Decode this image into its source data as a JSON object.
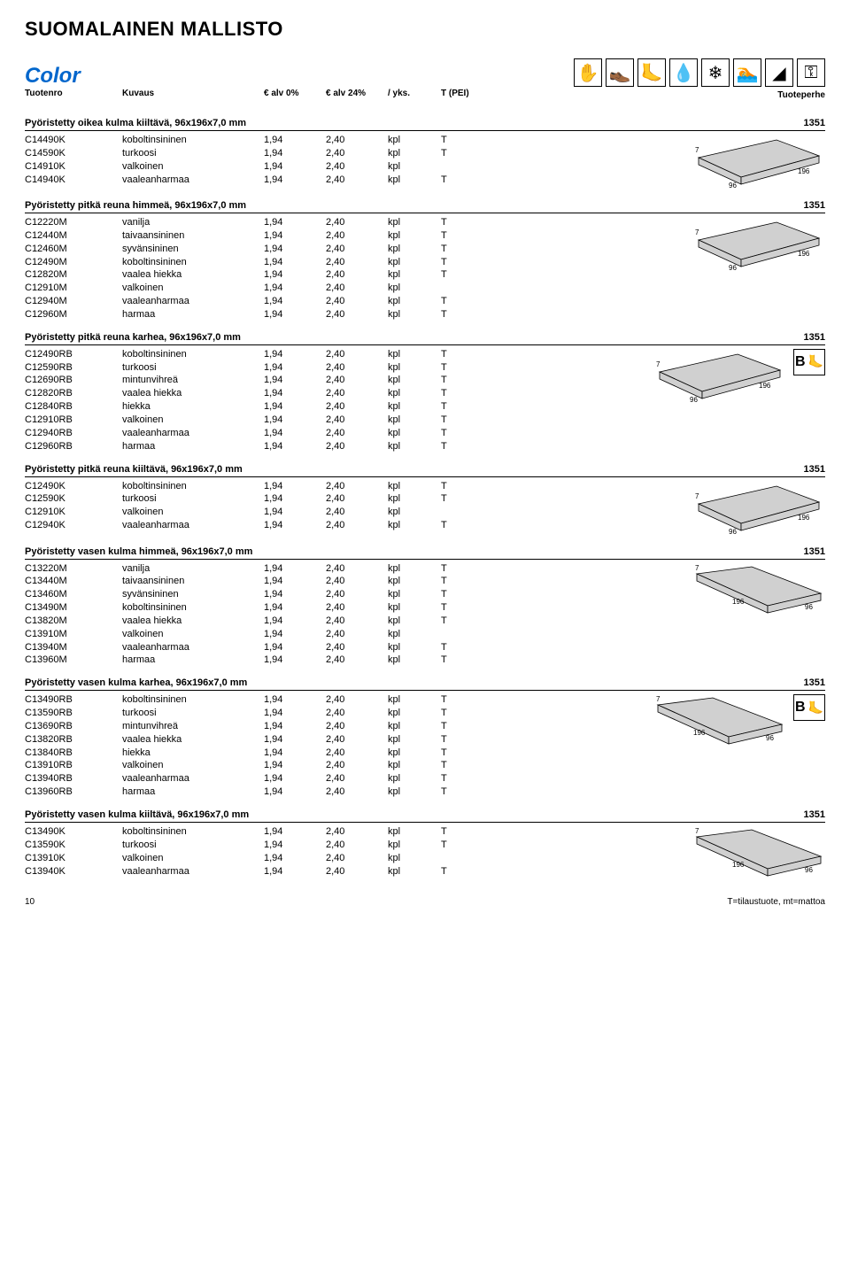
{
  "page_title": "SUOMALAINEN MALLISTO",
  "brand": "Color",
  "columns": {
    "tuotenro": "Tuotenro",
    "kuvaus": "Kuvaus",
    "alv0": "€ alv 0%",
    "alv24": "€ alv 24%",
    "yks": "/ yks.",
    "tpei": "T (PEI)",
    "tuoteperhe": "Tuoteperhe"
  },
  "header_icons": [
    {
      "name": "glove-icon",
      "glyph": "✋"
    },
    {
      "name": "shoe-icon",
      "glyph": "👞"
    },
    {
      "name": "foot-icon",
      "glyph": "🦶"
    },
    {
      "name": "drop-icon",
      "glyph": "💧"
    },
    {
      "name": "snowflake-icon",
      "glyph": "❄"
    },
    {
      "name": "swimmer-icon",
      "glyph": "🏊"
    },
    {
      "name": "slope-icon",
      "glyph": "◢"
    },
    {
      "name": "key-icon",
      "glyph": "⚿"
    }
  ],
  "dims": {
    "h": "7",
    "w": "96",
    "l": "196"
  },
  "sections": [
    {
      "title": "Pyöristetty oikea kulma kiiltävä, 96x196x7,0 mm",
      "family": "1351",
      "shape": "long_depth",
      "badge": false,
      "rows": [
        {
          "code": "C14490K",
          "desc": "koboltinsininen",
          "p0": "1,94",
          "p24": "2,40",
          "unit": "kpl",
          "t": "T"
        },
        {
          "code": "C14590K",
          "desc": "turkoosi",
          "p0": "1,94",
          "p24": "2,40",
          "unit": "kpl",
          "t": "T"
        },
        {
          "code": "C14910K",
          "desc": "valkoinen",
          "p0": "1,94",
          "p24": "2,40",
          "unit": "kpl",
          "t": ""
        },
        {
          "code": "C14940K",
          "desc": "vaaleanharmaa",
          "p0": "1,94",
          "p24": "2,40",
          "unit": "kpl",
          "t": "T"
        }
      ]
    },
    {
      "title": "Pyöristetty pitkä reuna himmeä, 96x196x7,0 mm",
      "family": "1351",
      "shape": "long_depth",
      "badge": false,
      "rows": [
        {
          "code": "C12220M",
          "desc": "vanilja",
          "p0": "1,94",
          "p24": "2,40",
          "unit": "kpl",
          "t": "T"
        },
        {
          "code": "C12440M",
          "desc": "taivaansininen",
          "p0": "1,94",
          "p24": "2,40",
          "unit": "kpl",
          "t": "T"
        },
        {
          "code": "C12460M",
          "desc": "syvänsininen",
          "p0": "1,94",
          "p24": "2,40",
          "unit": "kpl",
          "t": "T"
        },
        {
          "code": "C12490M",
          "desc": "koboltinsininen",
          "p0": "1,94",
          "p24": "2,40",
          "unit": "kpl",
          "t": "T"
        },
        {
          "code": "C12820M",
          "desc": "vaalea hiekka",
          "p0": "1,94",
          "p24": "2,40",
          "unit": "kpl",
          "t": "T"
        },
        {
          "code": "C12910M",
          "desc": "valkoinen",
          "p0": "1,94",
          "p24": "2,40",
          "unit": "kpl",
          "t": ""
        },
        {
          "code": "C12940M",
          "desc": "vaaleanharmaa",
          "p0": "1,94",
          "p24": "2,40",
          "unit": "kpl",
          "t": "T"
        },
        {
          "code": "C12960M",
          "desc": "harmaa",
          "p0": "1,94",
          "p24": "2,40",
          "unit": "kpl",
          "t": "T"
        }
      ]
    },
    {
      "title": "Pyöristetty pitkä reuna karhea, 96x196x7,0 mm",
      "family": "1351",
      "shape": "long_depth",
      "badge": true,
      "rows": [
        {
          "code": "C12490RB",
          "desc": "koboltinsininen",
          "p0": "1,94",
          "p24": "2,40",
          "unit": "kpl",
          "t": "T"
        },
        {
          "code": "C12590RB",
          "desc": "turkoosi",
          "p0": "1,94",
          "p24": "2,40",
          "unit": "kpl",
          "t": "T"
        },
        {
          "code": "C12690RB",
          "desc": "mintunvihreä",
          "p0": "1,94",
          "p24": "2,40",
          "unit": "kpl",
          "t": "T"
        },
        {
          "code": "C12820RB",
          "desc": "vaalea hiekka",
          "p0": "1,94",
          "p24": "2,40",
          "unit": "kpl",
          "t": "T"
        },
        {
          "code": "C12840RB",
          "desc": "hiekka",
          "p0": "1,94",
          "p24": "2,40",
          "unit": "kpl",
          "t": "T"
        },
        {
          "code": "C12910RB",
          "desc": "valkoinen",
          "p0": "1,94",
          "p24": "2,40",
          "unit": "kpl",
          "t": "T"
        },
        {
          "code": "C12940RB",
          "desc": "vaaleanharmaa",
          "p0": "1,94",
          "p24": "2,40",
          "unit": "kpl",
          "t": "T"
        },
        {
          "code": "C12960RB",
          "desc": "harmaa",
          "p0": "1,94",
          "p24": "2,40",
          "unit": "kpl",
          "t": "T"
        }
      ]
    },
    {
      "title": "Pyöristetty pitkä reuna kiiltävä, 96x196x7,0 mm",
      "family": "1351",
      "shape": "long_depth",
      "badge": false,
      "rows": [
        {
          "code": "C12490K",
          "desc": "koboltinsininen",
          "p0": "1,94",
          "p24": "2,40",
          "unit": "kpl",
          "t": "T"
        },
        {
          "code": "C12590K",
          "desc": "turkoosi",
          "p0": "1,94",
          "p24": "2,40",
          "unit": "kpl",
          "t": "T"
        },
        {
          "code": "C12910K",
          "desc": "valkoinen",
          "p0": "1,94",
          "p24": "2,40",
          "unit": "kpl",
          "t": ""
        },
        {
          "code": "C12940K",
          "desc": "vaaleanharmaa",
          "p0": "1,94",
          "p24": "2,40",
          "unit": "kpl",
          "t": "T"
        }
      ]
    },
    {
      "title": "Pyöristetty vasen kulma himmeä, 96x196x7,0 mm",
      "family": "1351",
      "shape": "long_width",
      "badge": false,
      "rows": [
        {
          "code": "C13220M",
          "desc": "vanilja",
          "p0": "1,94",
          "p24": "2,40",
          "unit": "kpl",
          "t": "T"
        },
        {
          "code": "C13440M",
          "desc": "taivaansininen",
          "p0": "1,94",
          "p24": "2,40",
          "unit": "kpl",
          "t": "T"
        },
        {
          "code": "C13460M",
          "desc": "syvänsininen",
          "p0": "1,94",
          "p24": "2,40",
          "unit": "kpl",
          "t": "T"
        },
        {
          "code": "C13490M",
          "desc": "koboltinsininen",
          "p0": "1,94",
          "p24": "2,40",
          "unit": "kpl",
          "t": "T"
        },
        {
          "code": "C13820M",
          "desc": "vaalea hiekka",
          "p0": "1,94",
          "p24": "2,40",
          "unit": "kpl",
          "t": "T"
        },
        {
          "code": "C13910M",
          "desc": "valkoinen",
          "p0": "1,94",
          "p24": "2,40",
          "unit": "kpl",
          "t": ""
        },
        {
          "code": "C13940M",
          "desc": "vaaleanharmaa",
          "p0": "1,94",
          "p24": "2,40",
          "unit": "kpl",
          "t": "T"
        },
        {
          "code": "C13960M",
          "desc": "harmaa",
          "p0": "1,94",
          "p24": "2,40",
          "unit": "kpl",
          "t": "T"
        }
      ]
    },
    {
      "title": "Pyöristetty vasen kulma karhea, 96x196x7,0 mm",
      "family": "1351",
      "shape": "long_width",
      "badge": true,
      "rows": [
        {
          "code": "C13490RB",
          "desc": "koboltinsininen",
          "p0": "1,94",
          "p24": "2,40",
          "unit": "kpl",
          "t": "T"
        },
        {
          "code": "C13590RB",
          "desc": "turkoosi",
          "p0": "1,94",
          "p24": "2,40",
          "unit": "kpl",
          "t": "T"
        },
        {
          "code": "C13690RB",
          "desc": "mintunvihreä",
          "p0": "1,94",
          "p24": "2,40",
          "unit": "kpl",
          "t": "T"
        },
        {
          "code": "C13820RB",
          "desc": "vaalea hiekka",
          "p0": "1,94",
          "p24": "2,40",
          "unit": "kpl",
          "t": "T"
        },
        {
          "code": "C13840RB",
          "desc": "hiekka",
          "p0": "1,94",
          "p24": "2,40",
          "unit": "kpl",
          "t": "T"
        },
        {
          "code": "C13910RB",
          "desc": "valkoinen",
          "p0": "1,94",
          "p24": "2,40",
          "unit": "kpl",
          "t": "T"
        },
        {
          "code": "C13940RB",
          "desc": "vaaleanharmaa",
          "p0": "1,94",
          "p24": "2,40",
          "unit": "kpl",
          "t": "T"
        },
        {
          "code": "C13960RB",
          "desc": "harmaa",
          "p0": "1,94",
          "p24": "2,40",
          "unit": "kpl",
          "t": "T"
        }
      ]
    },
    {
      "title": "Pyöristetty vasen kulma kiiltävä, 96x196x7,0 mm",
      "family": "1351",
      "shape": "long_width",
      "badge": false,
      "rows": [
        {
          "code": "C13490K",
          "desc": "koboltinsininen",
          "p0": "1,94",
          "p24": "2,40",
          "unit": "kpl",
          "t": "T"
        },
        {
          "code": "C13590K",
          "desc": "turkoosi",
          "p0": "1,94",
          "p24": "2,40",
          "unit": "kpl",
          "t": "T"
        },
        {
          "code": "C13910K",
          "desc": "valkoinen",
          "p0": "1,94",
          "p24": "2,40",
          "unit": "kpl",
          "t": ""
        },
        {
          "code": "C13940K",
          "desc": "vaaleanharmaa",
          "p0": "1,94",
          "p24": "2,40",
          "unit": "kpl",
          "t": "T"
        }
      ]
    }
  ],
  "footer": {
    "page": "10",
    "legend": "T=tilaustuote, mt=mattoa"
  },
  "tile_fill": "#d0d0d0",
  "tile_stroke": "#000000"
}
